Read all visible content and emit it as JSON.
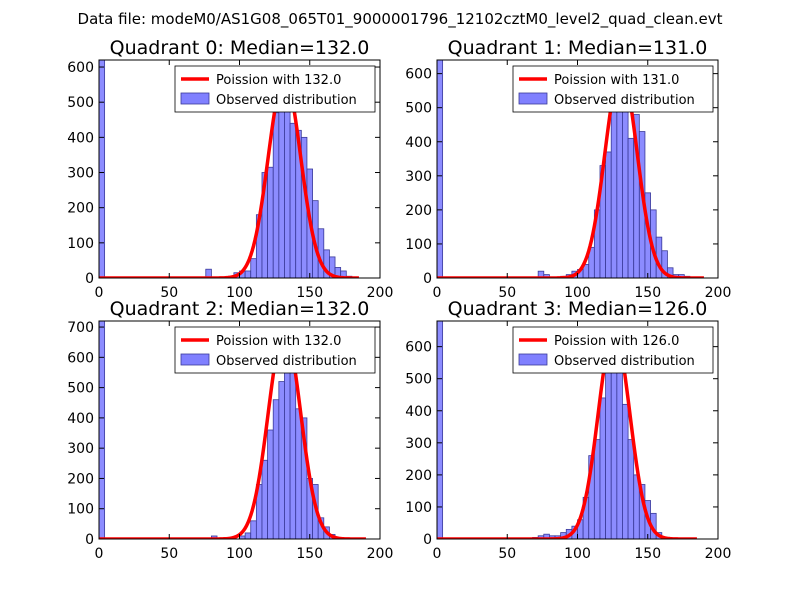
{
  "suptitle": "Data file: modeM0/AS1G08_065T01_9000001796_12102cztM0_level2_quad_clean.evt",
  "colors": {
    "bar_fill": "#8080ff",
    "bar_edge": "#3a3a99",
    "fit_line": "#ff0000"
  },
  "legend_position": "upper-right",
  "chart_data": [
    {
      "type": "bar",
      "title": "Quadrant 0: Median=132.0",
      "median": 132.0,
      "xlim": [
        0,
        200
      ],
      "ylim": [
        0,
        620
      ],
      "xticks": [
        0,
        50,
        100,
        150,
        200
      ],
      "yticks": [
        0,
        100,
        200,
        300,
        400,
        500,
        600
      ],
      "bin_width": 4,
      "bins": [
        [
          0,
          620
        ],
        [
          76,
          25
        ],
        [
          92,
          5
        ],
        [
          96,
          15
        ],
        [
          100,
          20
        ],
        [
          104,
          20
        ],
        [
          108,
          55
        ],
        [
          112,
          180
        ],
        [
          116,
          300
        ],
        [
          120,
          315
        ],
        [
          124,
          470
        ],
        [
          128,
          510
        ],
        [
          132,
          580
        ],
        [
          136,
          440
        ],
        [
          140,
          420
        ],
        [
          144,
          400
        ],
        [
          148,
          310
        ],
        [
          152,
          220
        ],
        [
          156,
          140
        ],
        [
          160,
          80
        ],
        [
          164,
          60
        ],
        [
          168,
          30
        ],
        [
          172,
          20
        ],
        [
          176,
          5
        ]
      ],
      "fit_peak": 570,
      "fit_sigma": 11.5,
      "fit_range": [
        0,
        185
      ],
      "series": [
        {
          "name": "Poission with 132.0",
          "kind": "line"
        },
        {
          "name": "Observed distribution",
          "kind": "bar"
        }
      ]
    },
    {
      "type": "bar",
      "title": "Quadrant 1: Median=131.0",
      "median": 131.0,
      "xlim": [
        0,
        200
      ],
      "ylim": [
        0,
        640
      ],
      "xticks": [
        0,
        50,
        100,
        150,
        200
      ],
      "yticks": [
        0,
        100,
        200,
        300,
        400,
        500,
        600
      ],
      "bin_width": 4,
      "bins": [
        [
          0,
          640
        ],
        [
          72,
          20
        ],
        [
          76,
          10
        ],
        [
          88,
          5
        ],
        [
          92,
          10
        ],
        [
          96,
          20
        ],
        [
          100,
          25
        ],
        [
          104,
          40
        ],
        [
          108,
          90
        ],
        [
          112,
          200
        ],
        [
          116,
          330
        ],
        [
          120,
          370
        ],
        [
          124,
          520
        ],
        [
          128,
          560
        ],
        [
          132,
          600
        ],
        [
          136,
          410
        ],
        [
          140,
          480
        ],
        [
          144,
          430
        ],
        [
          148,
          250
        ],
        [
          152,
          200
        ],
        [
          156,
          120
        ],
        [
          160,
          80
        ],
        [
          164,
          30
        ],
        [
          168,
          10
        ],
        [
          172,
          10
        ],
        [
          176,
          5
        ]
      ],
      "fit_peak": 610,
      "fit_sigma": 11.4,
      "fit_range": [
        0,
        190
      ],
      "series": [
        {
          "name": "Poission with 131.0",
          "kind": "line"
        },
        {
          "name": "Observed distribution",
          "kind": "bar"
        }
      ]
    },
    {
      "type": "bar",
      "title": "Quadrant 2: Median=132.0",
      "median": 132.0,
      "xlim": [
        0,
        200
      ],
      "ylim": [
        0,
        720
      ],
      "xticks": [
        0,
        50,
        100,
        150,
        200
      ],
      "yticks": [
        0,
        100,
        200,
        300,
        400,
        500,
        600,
        700
      ],
      "bin_width": 4,
      "bins": [
        [
          0,
          720
        ],
        [
          80,
          10
        ],
        [
          100,
          10
        ],
        [
          104,
          20
        ],
        [
          108,
          60
        ],
        [
          112,
          180
        ],
        [
          116,
          260
        ],
        [
          120,
          360
        ],
        [
          124,
          460
        ],
        [
          128,
          520
        ],
        [
          132,
          640
        ],
        [
          136,
          560
        ],
        [
          140,
          430
        ],
        [
          144,
          400
        ],
        [
          148,
          200
        ],
        [
          152,
          180
        ],
        [
          156,
          70
        ],
        [
          160,
          40
        ],
        [
          164,
          15
        ],
        [
          168,
          5
        ]
      ],
      "fit_peak": 690,
      "fit_sigma": 11.5,
      "fit_range": [
        0,
        190
      ],
      "series": [
        {
          "name": "Poission with 132.0",
          "kind": "line"
        },
        {
          "name": "Observed distribution",
          "kind": "bar"
        }
      ]
    },
    {
      "type": "bar",
      "title": "Quadrant 3: Median=126.0",
      "median": 126.0,
      "xlim": [
        0,
        200
      ],
      "ylim": [
        0,
        680
      ],
      "xticks": [
        0,
        50,
        100,
        150,
        200
      ],
      "yticks": [
        0,
        100,
        200,
        300,
        400,
        500,
        600
      ],
      "bin_width": 4,
      "bins": [
        [
          0,
          680
        ],
        [
          68,
          5
        ],
        [
          72,
          10
        ],
        [
          76,
          15
        ],
        [
          80,
          10
        ],
        [
          84,
          10
        ],
        [
          88,
          20
        ],
        [
          92,
          30
        ],
        [
          96,
          40
        ],
        [
          100,
          60
        ],
        [
          104,
          130
        ],
        [
          108,
          260
        ],
        [
          112,
          310
        ],
        [
          116,
          440
        ],
        [
          120,
          540
        ],
        [
          124,
          590
        ],
        [
          128,
          530
        ],
        [
          132,
          420
        ],
        [
          136,
          310
        ],
        [
          140,
          200
        ],
        [
          144,
          170
        ],
        [
          148,
          120
        ],
        [
          152,
          80
        ],
        [
          156,
          20
        ],
        [
          160,
          5
        ]
      ],
      "fit_peak": 650,
      "fit_sigma": 11.2,
      "fit_range": [
        0,
        185
      ],
      "series": [
        {
          "name": "Poission with 126.0",
          "kind": "line"
        },
        {
          "name": "Observed distribution",
          "kind": "bar"
        }
      ]
    }
  ]
}
